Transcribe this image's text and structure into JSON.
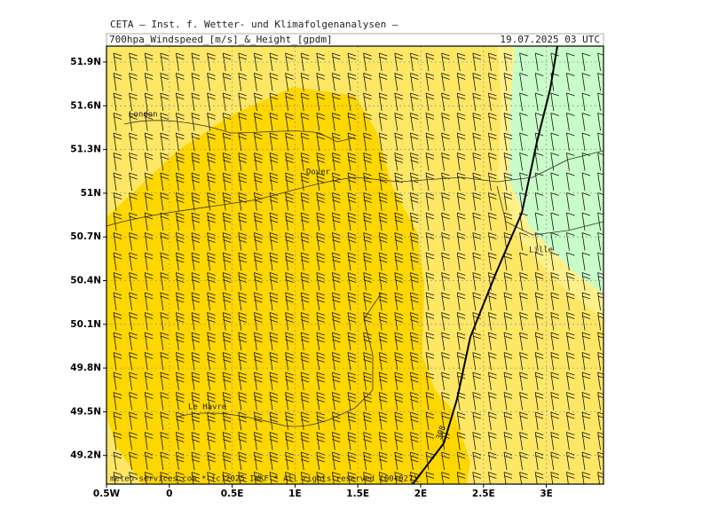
{
  "header": {
    "institute": "CETA — Inst. f. Wetter- und Klimafolgenanalysen —",
    "title": "700hpa_Windspeed_[m/s]_&_Height_[gpdm]",
    "date": "19.07.2025 03 UTC"
  },
  "map": {
    "lat_labels": [
      "51.9N",
      "51.6N",
      "51.3N",
      "51N",
      "50.7N",
      "50.4N",
      "50.1N",
      "49.8N",
      "49.5N",
      "49.2N"
    ],
    "lon_labels": [
      "0.5W",
      "0",
      "0.5E",
      "1E",
      "1.5E",
      "2E",
      "2.5E",
      "3E"
    ],
    "places": [
      "London",
      "Dover",
      "Lille",
      "Le Havre"
    ],
    "contour_label": "308"
  },
  "footer": "meteo-services.com * (c)2025 IWKF * All rights reserved (00+027)"
}
